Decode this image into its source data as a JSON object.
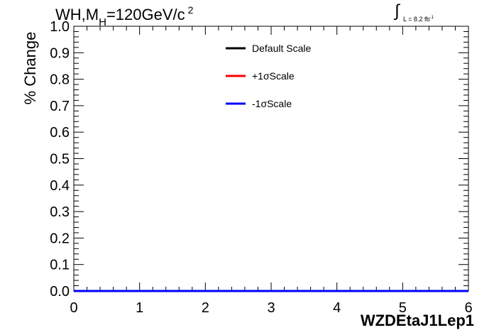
{
  "title": {
    "prefix": "WH,M",
    "subscript": "H",
    "value": "=120GeV/c",
    "superscript": "2"
  },
  "luminosity": {
    "symbol": "∫",
    "text": "L = 8.2 fb",
    "superscript": "-1"
  },
  "chart_data": {
    "type": "line",
    "xlabel": "WZDEtaJ1Lep1",
    "ylabel": "% Change",
    "xlim": [
      0,
      6
    ],
    "ylim": [
      0,
      1.0
    ],
    "x_ticks": [
      "0",
      "1",
      "2",
      "3",
      "4",
      "5",
      "6"
    ],
    "y_ticks": [
      "0.0",
      "0.1",
      "0.2",
      "0.3",
      "0.4",
      "0.5",
      "0.6",
      "0.7",
      "0.8",
      "0.9",
      "1.0"
    ],
    "legend_position": "top-center",
    "series": [
      {
        "name": "Default Scale",
        "color": "#000000",
        "x": [
          0,
          6
        ],
        "y": [
          0,
          0
        ]
      },
      {
        "name": "+1σScale",
        "color": "#ff0000",
        "x": [
          0,
          6
        ],
        "y": [
          0,
          0
        ]
      },
      {
        "name": "-1σScale",
        "color": "#0000ff",
        "x": [
          0,
          6
        ],
        "y": [
          0,
          0
        ]
      }
    ]
  }
}
